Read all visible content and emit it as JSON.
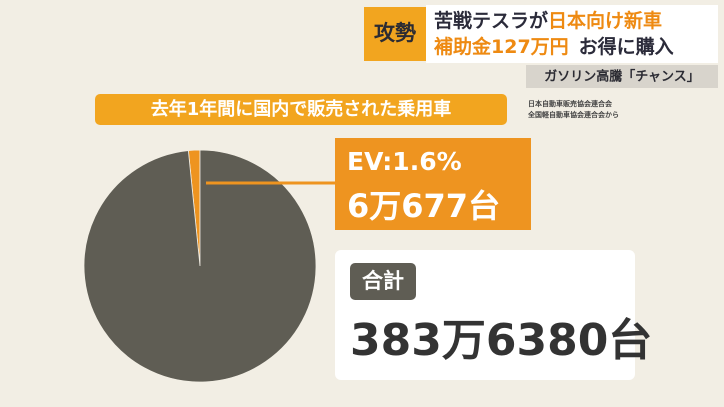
{
  "header": {
    "tag": "攻勢",
    "line1": [
      "苦戦テスラが",
      "日本向け新車"
    ],
    "line2": [
      "補助金127万円",
      "お得に購入"
    ],
    "subline": "ガソリン高騰「チャンス」"
  },
  "chart_data": {
    "type": "pie",
    "title": "去年1年間に国内で販売された乗用車",
    "source": [
      "日本自動車販売協会連合会",
      "全国軽自動車協会連合会から"
    ],
    "categories": [
      "EV",
      null
    ],
    "values": [
      1.6,
      98.4
    ],
    "value_labels": [
      "EV:1.6%",
      null
    ],
    "colors": [
      "#ee9420",
      "#5f5d54"
    ],
    "annotations": {
      "ev_units": "6万677台",
      "total_label": "合計",
      "total": "383万6380台"
    }
  }
}
